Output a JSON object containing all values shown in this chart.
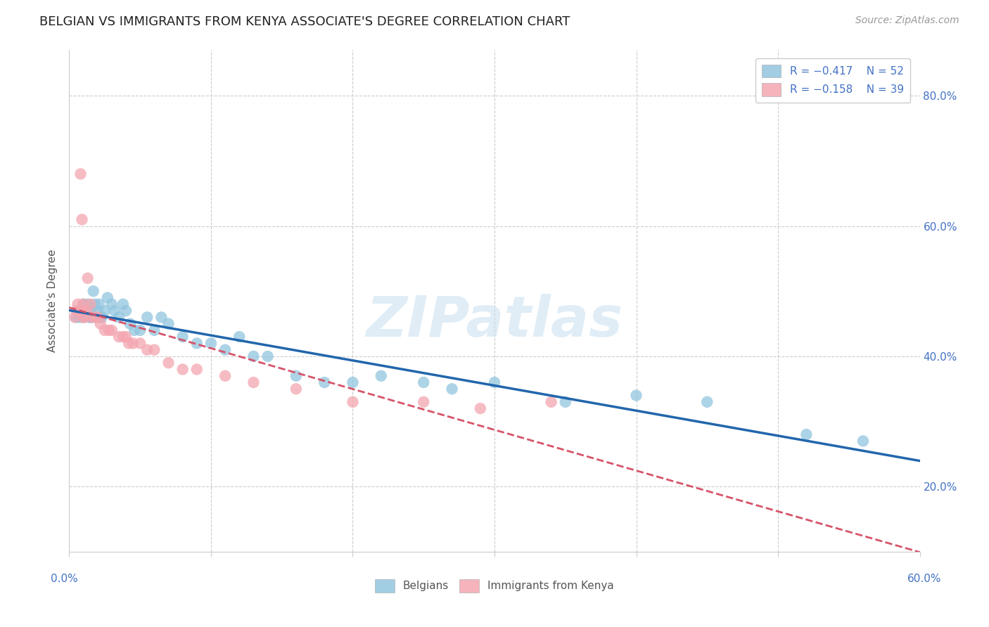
{
  "title": "BELGIAN VS IMMIGRANTS FROM KENYA ASSOCIATE'S DEGREE CORRELATION CHART",
  "source": "Source: ZipAtlas.com",
  "ylabel": "Associate's Degree",
  "watermark": "ZIPatlas",
  "legend_blue_r": "R = -0.417",
  "legend_blue_n": "N = 52",
  "legend_pink_r": "R = -0.158",
  "legend_pink_n": "N = 39",
  "legend_blue_label": "Belgians",
  "legend_pink_label": "Immigrants from Kenya",
  "x_min": 0.0,
  "x_max": 0.6,
  "y_min": 0.1,
  "y_max": 0.87,
  "ytick_values": [
    0.2,
    0.4,
    0.6,
    0.8
  ],
  "blue_color": "#92c5de",
  "pink_color": "#f4a6b0",
  "blue_line_color": "#2166ac",
  "pink_line_color": "#d6546a",
  "background_color": "#ffffff",
  "grid_color": "#cccccc",
  "blue_x": [
    0.005,
    0.007,
    0.008,
    0.009,
    0.01,
    0.01,
    0.012,
    0.013,
    0.014,
    0.015,
    0.015,
    0.016,
    0.017,
    0.018,
    0.019,
    0.02,
    0.021,
    0.022,
    0.023,
    0.025,
    0.027,
    0.03,
    0.032,
    0.035,
    0.038,
    0.04,
    0.043,
    0.046,
    0.05,
    0.055,
    0.06,
    0.065,
    0.07,
    0.08,
    0.09,
    0.1,
    0.11,
    0.12,
    0.13,
    0.14,
    0.16,
    0.18,
    0.2,
    0.22,
    0.25,
    0.27,
    0.3,
    0.35,
    0.4,
    0.45,
    0.52,
    0.56
  ],
  "blue_y": [
    0.46,
    0.46,
    0.47,
    0.46,
    0.46,
    0.48,
    0.47,
    0.48,
    0.46,
    0.46,
    0.47,
    0.46,
    0.5,
    0.48,
    0.46,
    0.47,
    0.48,
    0.46,
    0.46,
    0.47,
    0.49,
    0.48,
    0.47,
    0.46,
    0.48,
    0.47,
    0.45,
    0.44,
    0.44,
    0.46,
    0.44,
    0.46,
    0.45,
    0.43,
    0.42,
    0.42,
    0.41,
    0.43,
    0.4,
    0.4,
    0.37,
    0.36,
    0.36,
    0.37,
    0.36,
    0.35,
    0.36,
    0.33,
    0.34,
    0.33,
    0.28,
    0.27
  ],
  "pink_x": [
    0.004,
    0.005,
    0.006,
    0.007,
    0.008,
    0.008,
    0.009,
    0.01,
    0.01,
    0.01,
    0.011,
    0.012,
    0.013,
    0.015,
    0.016,
    0.018,
    0.02,
    0.022,
    0.025,
    0.028,
    0.03,
    0.035,
    0.038,
    0.04,
    0.042,
    0.045,
    0.05,
    0.055,
    0.06,
    0.07,
    0.08,
    0.09,
    0.11,
    0.13,
    0.16,
    0.2,
    0.25,
    0.29,
    0.34
  ],
  "pink_y": [
    0.46,
    0.47,
    0.48,
    0.47,
    0.47,
    0.68,
    0.61,
    0.46,
    0.47,
    0.48,
    0.46,
    0.47,
    0.52,
    0.48,
    0.46,
    0.46,
    0.46,
    0.45,
    0.44,
    0.44,
    0.44,
    0.43,
    0.43,
    0.43,
    0.42,
    0.42,
    0.42,
    0.41,
    0.41,
    0.39,
    0.38,
    0.38,
    0.37,
    0.36,
    0.35,
    0.33,
    0.33,
    0.32,
    0.33
  ],
  "title_fontsize": 13,
  "axis_label_fontsize": 11,
  "tick_fontsize": 11,
  "legend_fontsize": 11,
  "source_fontsize": 10
}
